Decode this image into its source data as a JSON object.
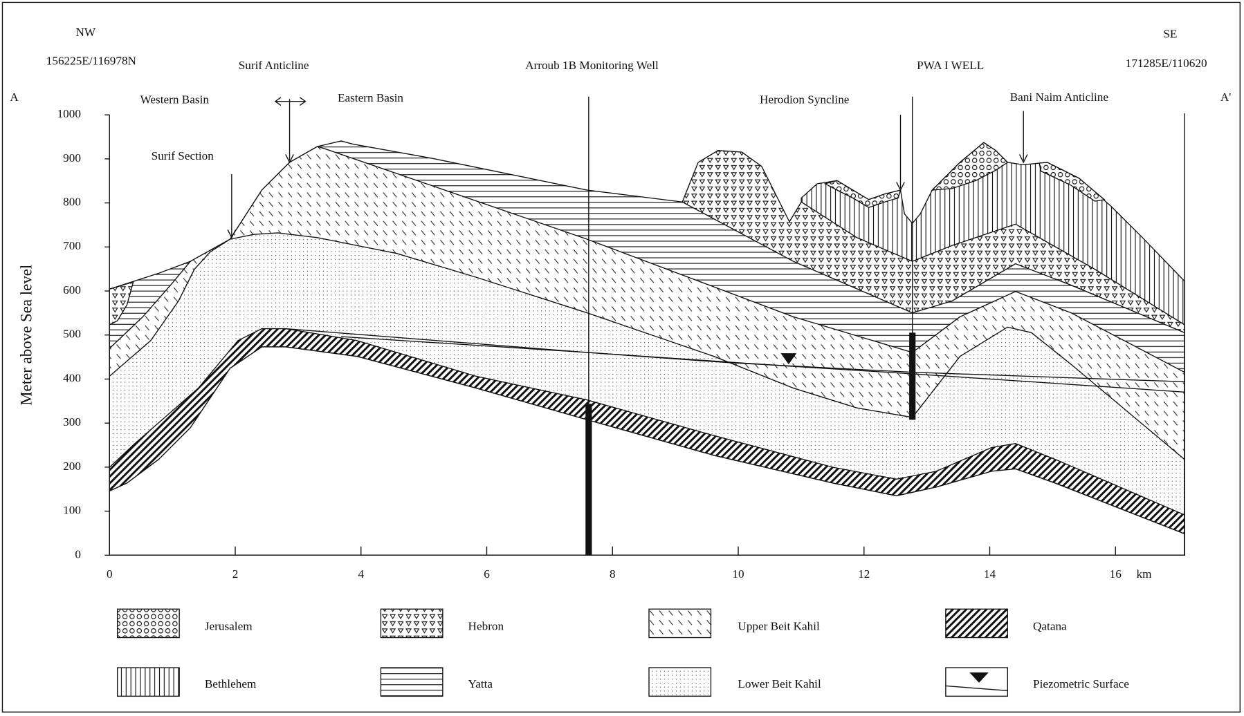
{
  "header": {
    "left_direction": "NW",
    "left_coordinates": "156225E/116978N",
    "left_point": "A",
    "right_direction": "SE",
    "right_coordinates": "171285E/110620",
    "right_point": "A'"
  },
  "annotations": [
    "Surif Anticline",
    "Arroub 1B Monitoring Well",
    "PWA I WELL",
    "Western Basin",
    "Eastern Basin",
    "Herodion Syncline",
    "Bani Naim Anticline",
    "Surif Section"
  ],
  "axes": {
    "y_label": "Meter above Sea level",
    "y_ticks": [
      0,
      100,
      200,
      300,
      400,
      500,
      600,
      700,
      800,
      900,
      1000
    ],
    "x_ticks": [
      0,
      2,
      4,
      6,
      8,
      10,
      12,
      14,
      16
    ],
    "x_unit": "km"
  },
  "legend": [
    "Jerusalem",
    "Hebron",
    "Upper Beit Kahil",
    "Qatana",
    "Bethlehem",
    "Yatta",
    "Lower Beit Kahil",
    "Piezometric Surface"
  ]
}
